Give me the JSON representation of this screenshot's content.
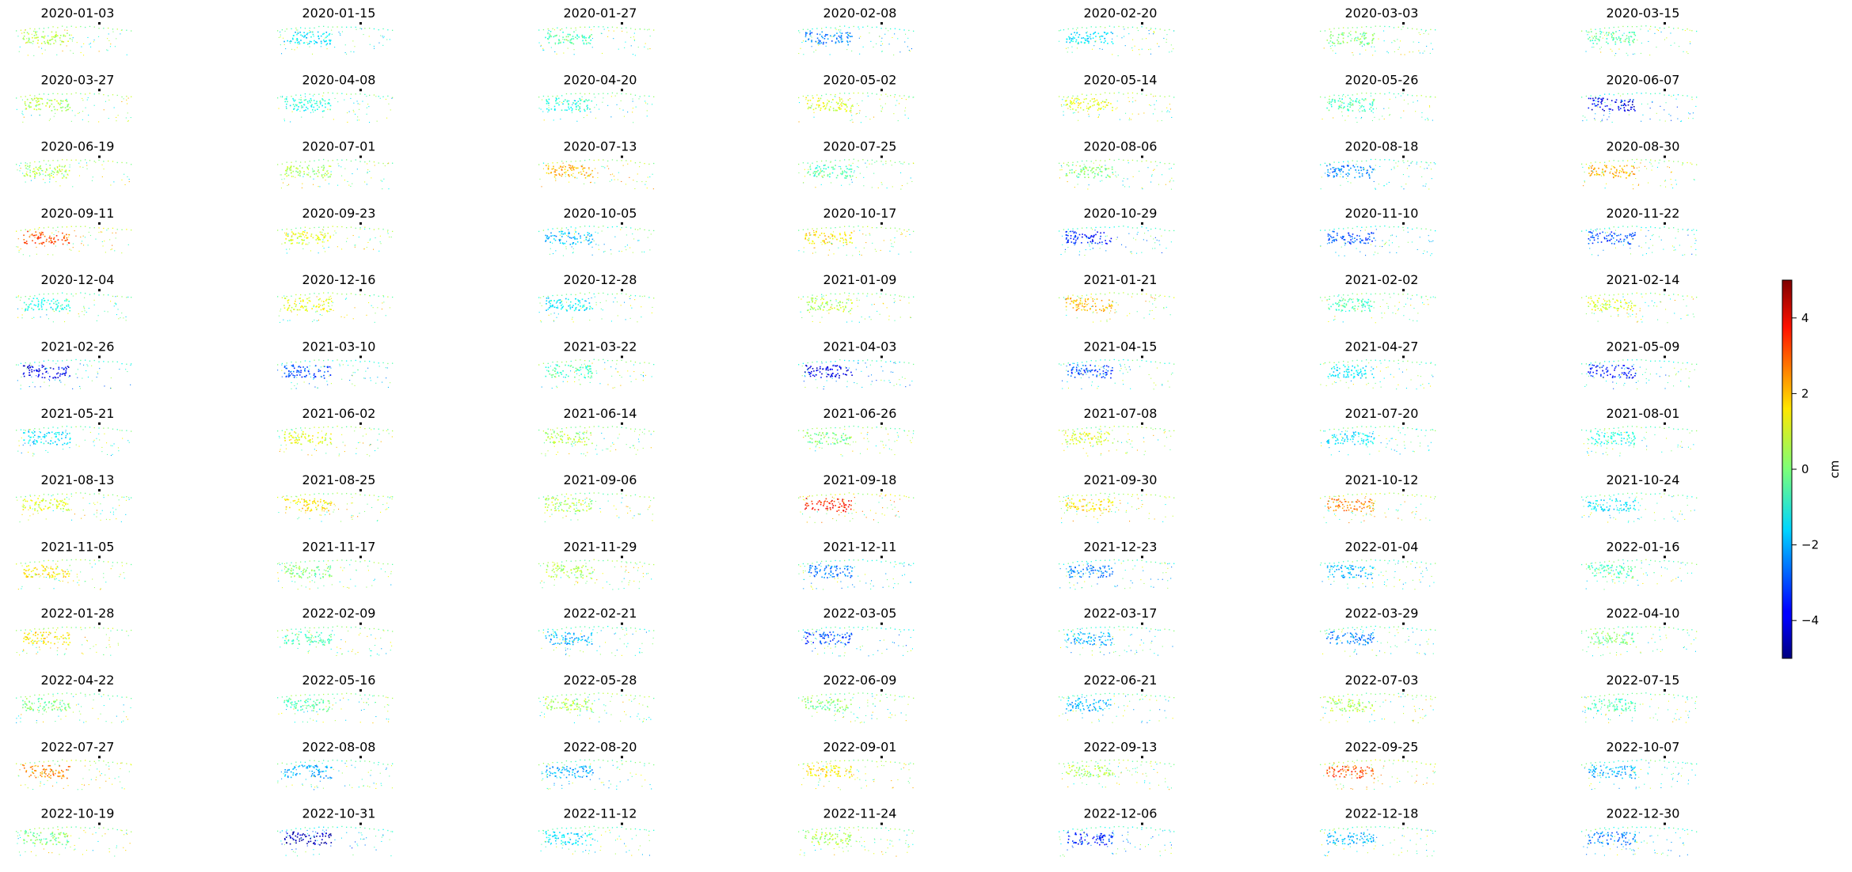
{
  "chart_data": {
    "type": "scatter",
    "layout": "small-multiples grid",
    "grid": {
      "rows": 13,
      "cols": 7
    },
    "dates": [
      "2020-01-03",
      "2020-01-15",
      "2020-01-27",
      "2020-02-08",
      "2020-02-20",
      "2020-03-03",
      "2020-03-15",
      "2020-03-27",
      "2020-04-08",
      "2020-04-20",
      "2020-05-02",
      "2020-05-14",
      "2020-05-26",
      "2020-06-07",
      "2020-06-19",
      "2020-07-01",
      "2020-07-13",
      "2020-07-25",
      "2020-08-06",
      "2020-08-18",
      "2020-08-30",
      "2020-09-11",
      "2020-09-23",
      "2020-10-05",
      "2020-10-17",
      "2020-10-29",
      "2020-11-10",
      "2020-11-22",
      "2020-12-04",
      "2020-12-16",
      "2020-12-28",
      "2021-01-09",
      "2021-01-21",
      "2021-02-02",
      "2021-02-14",
      "2021-02-26",
      "2021-03-10",
      "2021-03-22",
      "2021-04-03",
      "2021-04-15",
      "2021-04-27",
      "2021-05-09",
      "2021-05-21",
      "2021-06-02",
      "2021-06-14",
      "2021-06-26",
      "2021-07-08",
      "2021-07-20",
      "2021-08-01",
      "2021-08-13",
      "2021-08-25",
      "2021-09-06",
      "2021-09-18",
      "2021-09-30",
      "2021-10-12",
      "2021-10-24",
      "2021-11-05",
      "2021-11-17",
      "2021-11-29",
      "2021-12-11",
      "2021-12-23",
      "2022-01-04",
      "2022-01-16",
      "2022-01-28",
      "2022-02-09",
      "2022-02-21",
      "2022-03-05",
      "2022-03-17",
      "2022-03-29",
      "2022-04-10",
      "2022-04-22",
      "2022-05-16",
      "2022-05-28",
      "2022-06-09",
      "2022-06-21",
      "2022-07-03",
      "2022-07-15",
      "2022-07-27",
      "2022-08-08",
      "2022-08-20",
      "2022-09-01",
      "2022-09-13",
      "2022-09-25",
      "2022-10-07",
      "2022-10-19",
      "2022-10-31",
      "2022-11-12",
      "2022-11-24",
      "2022-12-06",
      "2022-12-18",
      "2022-12-30"
    ],
    "dominant_values_cm": [
      0.5,
      -1.5,
      -0.5,
      -2.5,
      -1.5,
      0.0,
      -0.5,
      0.5,
      -1.0,
      -1.0,
      1.0,
      1.0,
      -0.5,
      -4.0,
      0.5,
      0.5,
      2.0,
      -0.5,
      0.0,
      -2.5,
      2.0,
      3.0,
      1.0,
      -2.0,
      1.5,
      -3.5,
      -3.0,
      -3.0,
      -1.0,
      1.0,
      -1.5,
      0.5,
      2.0,
      -0.5,
      1.0,
      -4.0,
      -3.0,
      -0.5,
      -4.0,
      -3.0,
      -1.5,
      -3.5,
      -1.5,
      1.0,
      0.5,
      0.0,
      1.0,
      -1.5,
      -1.0,
      1.0,
      1.5,
      0.5,
      3.5,
      1.5,
      2.5,
      -1.5,
      1.5,
      0.0,
      0.5,
      -2.5,
      -2.5,
      -2.0,
      -0.5,
      1.5,
      -0.5,
      -2.0,
      -3.0,
      -2.0,
      -2.5,
      0.0,
      0.0,
      -0.5,
      0.5,
      0.0,
      -2.0,
      0.5,
      -0.5,
      2.5,
      -2.0,
      -2.0,
      1.5,
      0.5,
      3.0,
      -2.0,
      0.0,
      -4.5,
      -1.5,
      0.5,
      -3.5,
      -2.0,
      -2.5
    ],
    "colorbar": {
      "label": "cm",
      "colormap": "jet",
      "range": [
        -5,
        5
      ],
      "ticks": [
        4,
        2,
        0,
        -2,
        -4
      ],
      "tick_labels": [
        "4",
        "2",
        "0",
        "−2",
        "−4"
      ]
    },
    "axes_visible": false
  }
}
